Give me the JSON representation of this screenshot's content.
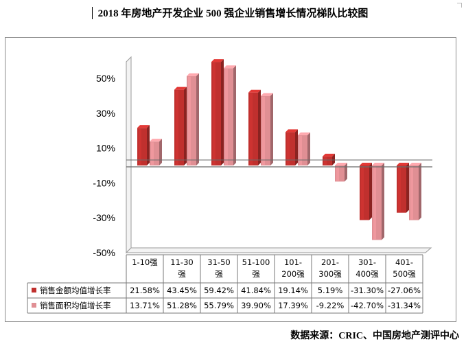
{
  "title": "2018 年房地产开发企业 500 强企业销售增长情况梯队比较图",
  "source": "数据来源：CRIC、中国房地产测评中心",
  "chart_data": {
    "type": "bar",
    "title": "2018 年房地产开发企业 500 强企业销售增长情况梯队比较图",
    "categories": [
      [
        "1-10强"
      ],
      [
        "11-30",
        "强"
      ],
      [
        "31-50",
        "强"
      ],
      [
        "51-100",
        "强"
      ],
      [
        "101-",
        "200强"
      ],
      [
        "201-",
        "300强"
      ],
      [
        "301-",
        "400强"
      ],
      [
        "401-",
        "500强"
      ]
    ],
    "y_ticks": [
      "50%",
      "30%",
      "10%",
      "-10%",
      "-30%",
      "-50%"
    ],
    "ylim": [
      -50,
      60
    ],
    "series": [
      {
        "name": "销售金额均值增长率",
        "color": "#c0302e",
        "values": [
          21.58,
          43.45,
          59.42,
          41.84,
          19.14,
          5.19,
          -31.3,
          -27.06
        ],
        "labels": [
          "21.58%",
          "43.45%",
          "59.42%",
          "41.84%",
          "19.14%",
          "5.19%",
          "-31.30%",
          "-27.06%"
        ]
      },
      {
        "name": "销售面积均值增长率",
        "color": "#e08f94",
        "values": [
          13.71,
          51.28,
          55.79,
          39.9,
          17.39,
          -9.22,
          -42.7,
          -31.34
        ],
        "labels": [
          "13.71%",
          "51.28%",
          "55.79%",
          "39.90%",
          "17.39%",
          "-9.22%",
          "-42.70%",
          "-31.34%"
        ]
      }
    ]
  }
}
